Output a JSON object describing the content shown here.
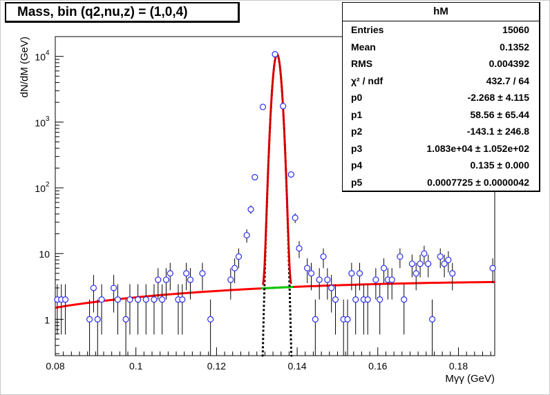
{
  "title": "Mass, bin (q2,nu,z) = (1,0,4)",
  "stats": {
    "name": "hM",
    "rows": [
      {
        "key": "Entries",
        "value": "15060"
      },
      {
        "key": "Mean",
        "value": "0.1352"
      },
      {
        "key": "RMS",
        "value": "0.004392"
      },
      {
        "key": "χ² / ndf",
        "value": "432.7 / 64"
      },
      {
        "key": "p0",
        "value": "-2.268 ± 4.115"
      },
      {
        "key": "p1",
        "value": "58.56 ± 65.44"
      },
      {
        "key": "p2",
        "value": "-143.1 ± 246.8"
      },
      {
        "key": "p3",
        "value": "1.083e+04 ± 1.052e+02"
      },
      {
        "key": "p4",
        "value": "0.135 ± 0.000"
      },
      {
        "key": "p5",
        "value": "0.0007725 ± 0.0000042"
      }
    ]
  },
  "colors": {
    "points": "#2a2af0",
    "fit": "#ff0000",
    "peak": "#9a0000",
    "background": "#00cc00",
    "limits": "#000000"
  },
  "chart_data": {
    "type": "scatter",
    "xlabel": "Mγγ (GeV)",
    "ylabel": "dN/dM (GeV)",
    "xlim": [
      0.08,
      0.189
    ],
    "ylim": [
      0.28,
      20000
    ],
    "y_scale": "log",
    "x_ticks": [
      "0.08",
      "0.1",
      "0.12",
      "0.14",
      "0.16",
      "0.18"
    ],
    "x_tick_values": [
      0.08,
      0.1,
      0.12,
      0.14,
      0.16,
      0.18
    ],
    "y_ticks": [
      "1",
      "10",
      "10²",
      "10³",
      "10⁴"
    ],
    "y_tick_values": [
      1,
      10,
      100,
      1000,
      10000
    ],
    "bin_width": 0.001,
    "points": [
      [
        0.0805,
        2
      ],
      [
        0.0815,
        2
      ],
      [
        0.0825,
        2
      ],
      [
        0.0885,
        1
      ],
      [
        0.0895,
        3
      ],
      [
        0.0905,
        1
      ],
      [
        0.0915,
        2
      ],
      [
        0.0945,
        3
      ],
      [
        0.0955,
        2
      ],
      [
        0.0975,
        1
      ],
      [
        0.0985,
        2
      ],
      [
        0.1005,
        2
      ],
      [
        0.1025,
        2
      ],
      [
        0.1045,
        2
      ],
      [
        0.1055,
        4
      ],
      [
        0.1065,
        2
      ],
      [
        0.1075,
        4
      ],
      [
        0.1085,
        5
      ],
      [
        0.1105,
        2
      ],
      [
        0.1115,
        2
      ],
      [
        0.1125,
        5
      ],
      [
        0.1135,
        4
      ],
      [
        0.1165,
        5
      ],
      [
        0.1185,
        1
      ],
      [
        0.1235,
        4
      ],
      [
        0.1245,
        6
      ],
      [
        0.1255,
        9
      ],
      [
        0.1275,
        19
      ],
      [
        0.1285,
        47
      ],
      [
        0.1295,
        145
      ],
      [
        0.1315,
        1700
      ],
      [
        0.1345,
        10800
      ],
      [
        0.1365,
        1750
      ],
      [
        0.1385,
        160
      ],
      [
        0.1395,
        35
      ],
      [
        0.1405,
        12
      ],
      [
        0.1425,
        6
      ],
      [
        0.1435,
        5
      ],
      [
        0.1445,
        1
      ],
      [
        0.1455,
        4
      ],
      [
        0.1465,
        9
      ],
      [
        0.1475,
        4
      ],
      [
        0.1485,
        3
      ],
      [
        0.1495,
        2
      ],
      [
        0.1515,
        1
      ],
      [
        0.1525,
        1
      ],
      [
        0.1535,
        5
      ],
      [
        0.1545,
        2
      ],
      [
        0.1555,
        5
      ],
      [
        0.1565,
        2
      ],
      [
        0.1575,
        2
      ],
      [
        0.1595,
        4
      ],
      [
        0.1605,
        2
      ],
      [
        0.1615,
        6
      ],
      [
        0.1625,
        4
      ],
      [
        0.1635,
        4
      ],
      [
        0.1655,
        9
      ],
      [
        0.1665,
        2
      ],
      [
        0.1685,
        7
      ],
      [
        0.1695,
        5
      ],
      [
        0.1705,
        7
      ],
      [
        0.1715,
        10
      ],
      [
        0.1725,
        7
      ],
      [
        0.1735,
        1
      ],
      [
        0.1755,
        9
      ],
      [
        0.1765,
        7
      ],
      [
        0.1775,
        8
      ],
      [
        0.1785,
        5
      ],
      [
        0.1885,
        6
      ]
    ],
    "fit_function": "p0 + p1*x + p2*x^2 + p3*exp(-0.5*((x-p4)/p5)^2)",
    "fit_params": {
      "p0": -2.268,
      "p1": 58.56,
      "p2": -143.1,
      "p3": 10830,
      "p4": 0.135,
      "p5": 0.0007725
    },
    "signal_window": [
      0.1315,
      0.1385
    ]
  }
}
